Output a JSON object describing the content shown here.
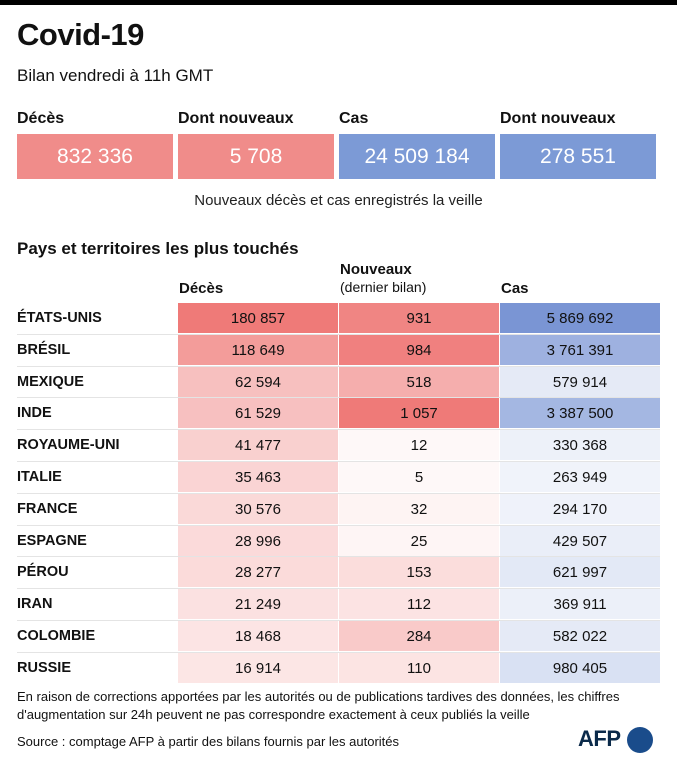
{
  "title": "Covid-19",
  "subtitle": "Bilan vendredi à 11h GMT",
  "summary": [
    {
      "label": "Décès",
      "value": "832 336",
      "color": "#f08c8a"
    },
    {
      "label": "Dont nouveaux",
      "value": "5 708",
      "color": "#f08c8a"
    },
    {
      "label": "Cas",
      "value": "24 509 184",
      "color": "#7c9ad6"
    },
    {
      "label": "Dont nouveaux",
      "value": "278 551",
      "color": "#7c9ad6"
    }
  ],
  "summary_note": "Nouveaux décès et cas enregistrés la veille",
  "section_title": "Pays et territoires les plus touchés",
  "table_headers": {
    "deaths": "Décès",
    "new": "Nouveaux",
    "new_sub": "(dernier bilan)",
    "cases": "Cas"
  },
  "chart_data": {
    "type": "table",
    "title": "Pays et territoires les plus touchés",
    "columns": [
      "Décès",
      "Nouveaux (dernier bilan)",
      "Cas"
    ],
    "rows": [
      {
        "country": "ÉTATS-UNIS",
        "deaths": 180857,
        "new": 931,
        "cases": 5869692,
        "deaths_text": "180 857",
        "new_text": "931",
        "cases_text": "5 869 692"
      },
      {
        "country": "BRÉSIL",
        "deaths": 118649,
        "new": 984,
        "cases": 3761391,
        "deaths_text": "118 649",
        "new_text": "984",
        "cases_text": "3 761 391"
      },
      {
        "country": "MEXIQUE",
        "deaths": 62594,
        "new": 518,
        "cases": 579914,
        "deaths_text": "62 594",
        "new_text": "518",
        "cases_text": "579 914"
      },
      {
        "country": "INDE",
        "deaths": 61529,
        "new": 1057,
        "cases": 3387500,
        "deaths_text": "61 529",
        "new_text": "1 057",
        "cases_text": "3 387 500"
      },
      {
        "country": "ROYAUME-UNI",
        "deaths": 41477,
        "new": 12,
        "cases": 330368,
        "deaths_text": "41 477",
        "new_text": "12",
        "cases_text": "330 368"
      },
      {
        "country": "ITALIE",
        "deaths": 35463,
        "new": 5,
        "cases": 263949,
        "deaths_text": "35 463",
        "new_text": "5",
        "cases_text": "263 949"
      },
      {
        "country": "FRANCE",
        "deaths": 30576,
        "new": 32,
        "cases": 294170,
        "deaths_text": "30 576",
        "new_text": "32",
        "cases_text": "294 170"
      },
      {
        "country": "ESPAGNE",
        "deaths": 28996,
        "new": 25,
        "cases": 429507,
        "deaths_text": "28 996",
        "new_text": "25",
        "cases_text": "429 507"
      },
      {
        "country": "PÉROU",
        "deaths": 28277,
        "new": 153,
        "cases": 621997,
        "deaths_text": "28 277",
        "new_text": "153",
        "cases_text": "621 997"
      },
      {
        "country": "IRAN",
        "deaths": 21249,
        "new": 112,
        "cases": 369911,
        "deaths_text": "21 249",
        "new_text": "112",
        "cases_text": "369 911"
      },
      {
        "country": "COLOMBIE",
        "deaths": 18468,
        "new": 284,
        "cases": 582022,
        "deaths_text": "18 468",
        "new_text": "284",
        "cases_text": "582 022"
      },
      {
        "country": "RUSSIE",
        "deaths": 16914,
        "new": 110,
        "cases": 980405,
        "deaths_text": "16 914",
        "new_text": "110",
        "cases_text": "980 405"
      }
    ]
  },
  "colors": {
    "red": "#ef7a78",
    "blue": "#7a95d4"
  },
  "footnote_1": "En raison de corrections apportées par les autorités ou de publications tardives des données, les chiffres",
  "footnote_2": "d'augmentation sur 24h peuvent ne pas correspondre exactement à ceux publiés la veille",
  "source": "Source : comptage AFP à partir des bilans fournis par les autorités",
  "logo": "AFP"
}
